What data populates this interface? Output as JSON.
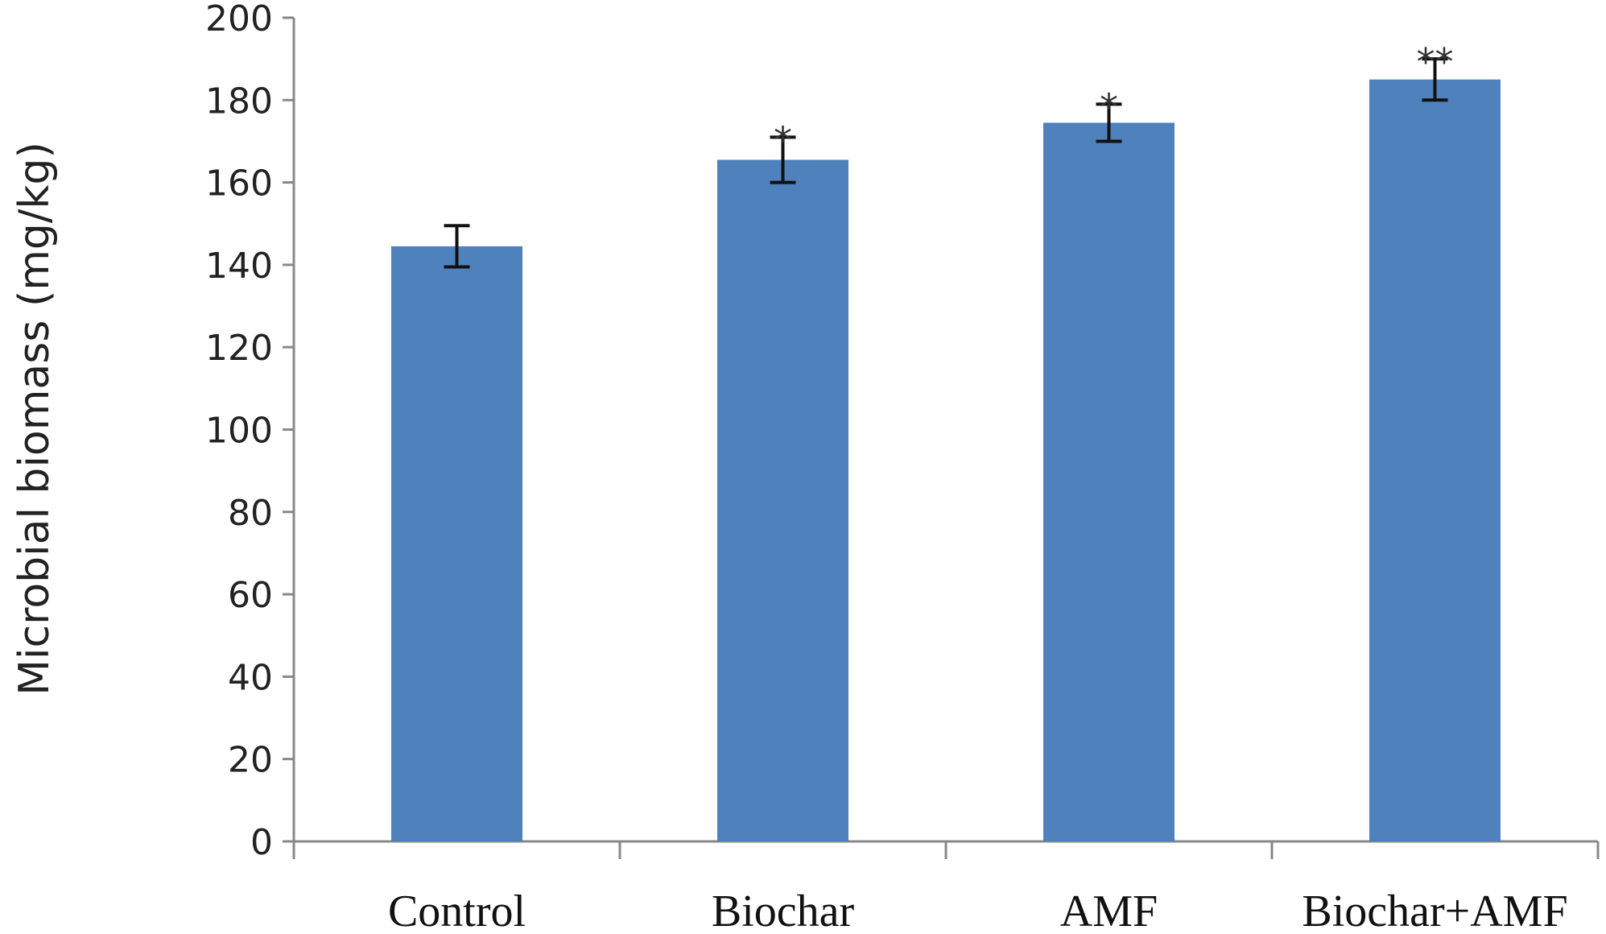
{
  "chart_data": {
    "type": "bar",
    "categories": [
      "Control",
      "Biochar",
      "AMF",
      "Biochar+AMF"
    ],
    "values": [
      144.5,
      165.5,
      174.5,
      185
    ],
    "errors": [
      5,
      5.5,
      4.5,
      5
    ],
    "significance": [
      "",
      "*",
      "*",
      "**"
    ],
    "title": "",
    "xlabel": "",
    "ylabel": "Microbial biomass (mg/kg)",
    "ylim": [
      0,
      200
    ],
    "yticks": [
      "0",
      "20",
      "40",
      "60",
      "80",
      "100",
      "120",
      "140",
      "160",
      "180",
      "200"
    ],
    "grid": false,
    "legend": "none",
    "bar_color": "#4f81bd",
    "error_bar_color": "#111111"
  }
}
